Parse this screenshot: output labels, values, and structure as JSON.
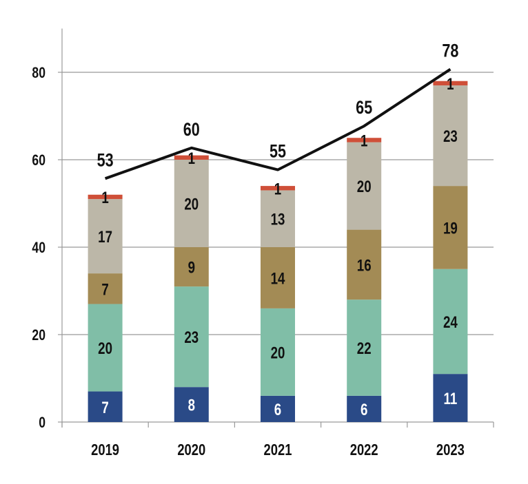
{
  "chart_data": {
    "type": "bar",
    "stacked": true,
    "categories": [
      "2019",
      "2020",
      "2021",
      "2022",
      "2023"
    ],
    "series": [
      {
        "values": [
          7,
          8,
          6,
          6,
          11
        ],
        "color": "#2a4a87",
        "label_color": "#ffffff"
      },
      {
        "values": [
          20,
          23,
          20,
          22,
          24
        ],
        "color": "#80bea7",
        "label_color": "#111111"
      },
      {
        "values": [
          7,
          9,
          14,
          16,
          19
        ],
        "color": "#a38b55",
        "label_color": "#111111"
      },
      {
        "values": [
          17,
          20,
          13,
          20,
          23
        ],
        "color": "#bcb7a8",
        "label_color": "#111111"
      },
      {
        "values": [
          1,
          1,
          1,
          1,
          1
        ],
        "color": "#cf4f38",
        "label_color": "#111111"
      }
    ],
    "total_line": {
      "type": "line",
      "values": [
        53,
        60,
        55,
        65,
        78
      ],
      "color": "#111111"
    },
    "yticks": [
      0,
      20,
      40,
      60,
      80
    ],
    "ylim": [
      0,
      90
    ],
    "grid": true,
    "title": "",
    "xlabel": "",
    "ylabel": ""
  }
}
